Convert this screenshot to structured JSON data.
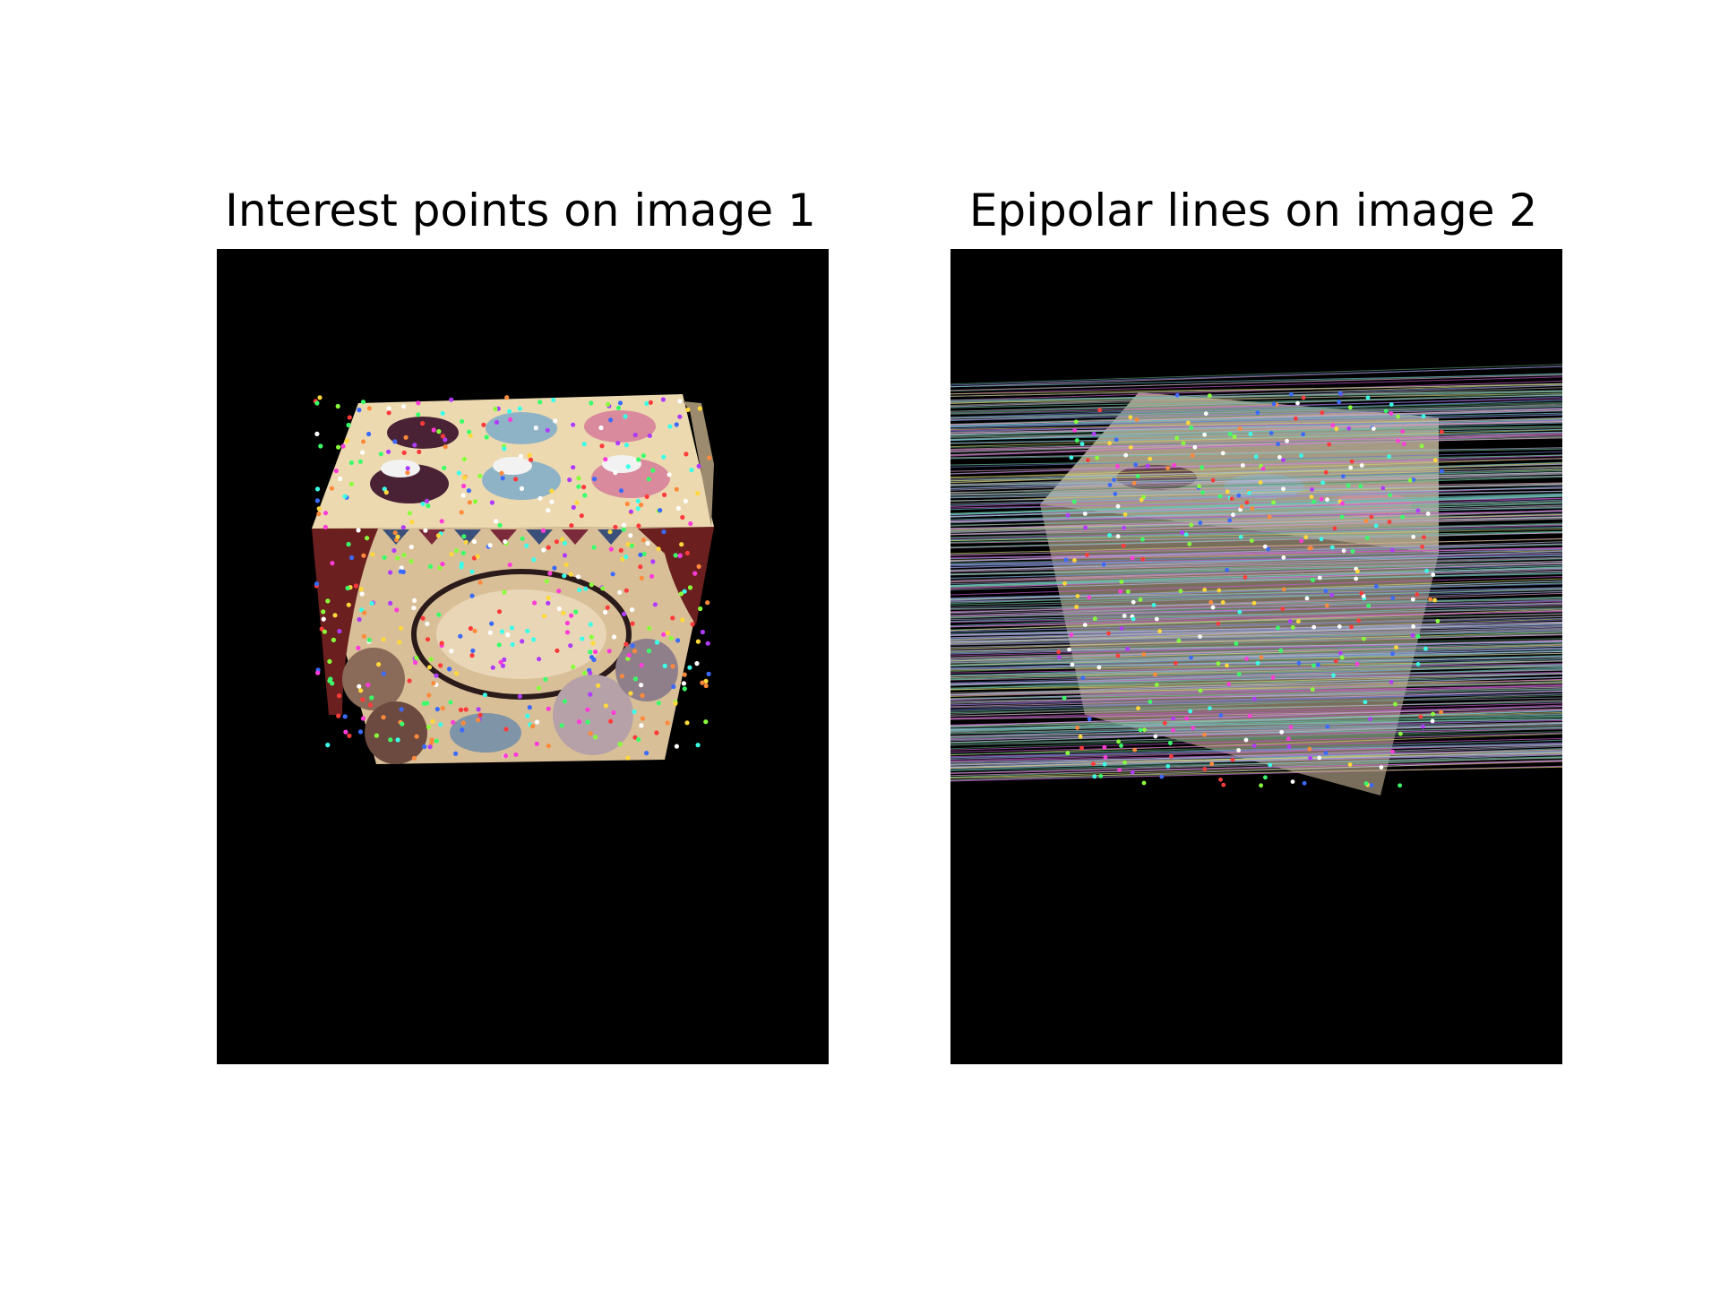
{
  "figure": {
    "panels": [
      {
        "title": "Interest points on image 1"
      },
      {
        "title": "Epipolar lines on image 2"
      }
    ]
  },
  "colors": {
    "background": "#ffffff",
    "panel_background": "#000000",
    "box_top": "#ecd9b0",
    "box_front": "#d9c09a",
    "curtain": "#6b1f1f",
    "cup_dark": "#4a2236",
    "cup_blue": "#8fb3c6",
    "cup_pink": "#d98a9c"
  }
}
